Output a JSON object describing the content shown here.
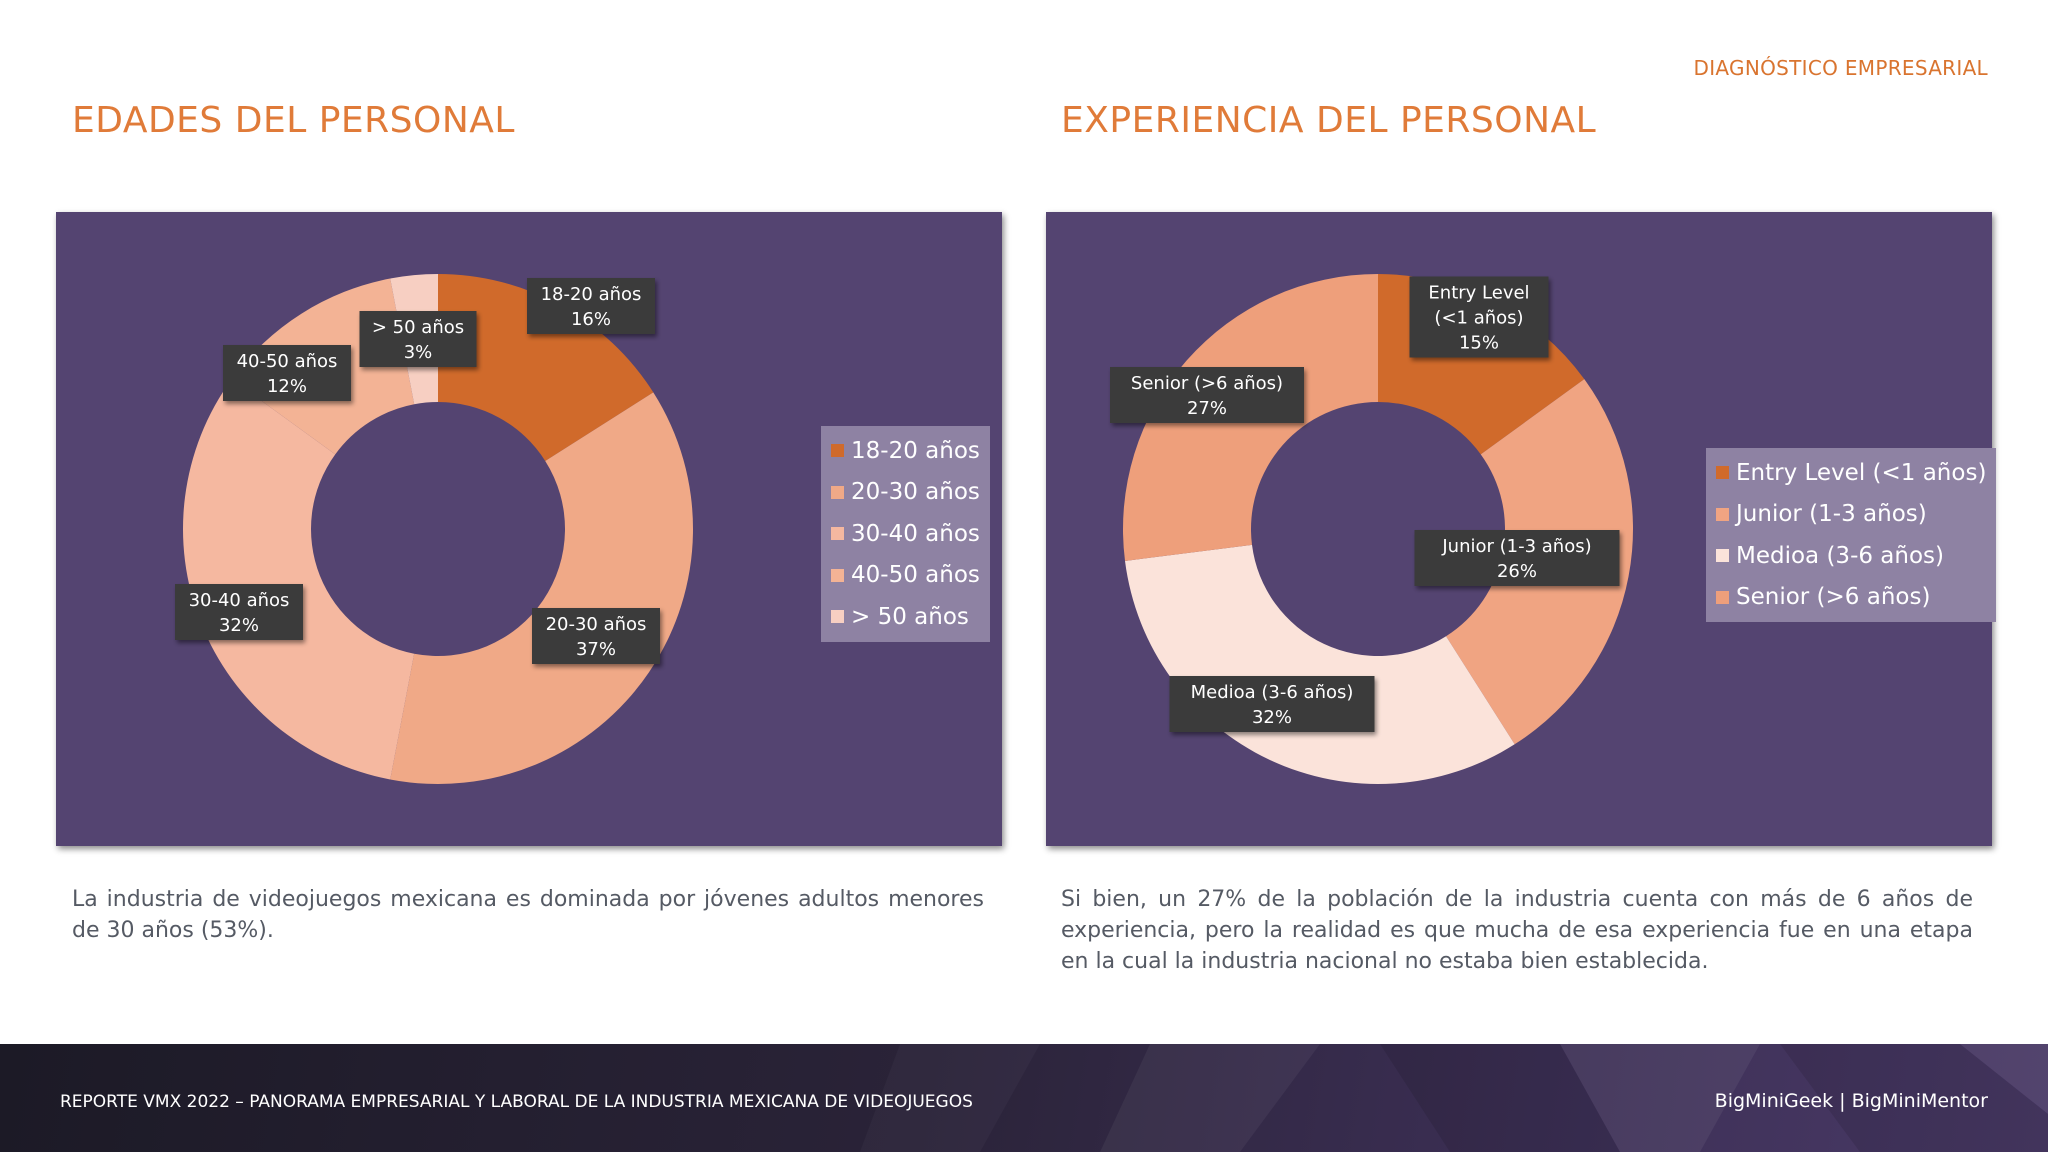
{
  "header": {
    "section_tag": "DIAGNÓSTICO EMPRESARIAL"
  },
  "colors": {
    "accent": "#e07b39",
    "panel": "#544471",
    "legend_bg": "#8e82a3",
    "label_bg": "#3a3a3a"
  },
  "chart_data": [
    {
      "type": "pie",
      "style": "donut",
      "title": "EDADES DEL PERSONAL",
      "categories": [
        "18-20 años",
        "20-30 años",
        "30-40 años",
        "40-50 años",
        "> 50 años"
      ],
      "values": [
        16,
        37,
        32,
        12,
        3
      ],
      "colors": [
        "#d06a2b",
        "#f0a987",
        "#f5b8a0",
        "#f3b395",
        "#f7cfc2"
      ],
      "data_labels": [
        [
          "18-20 años",
          "16%"
        ],
        [
          "20-30 años",
          "37%"
        ],
        [
          "30-40 años",
          "32%"
        ],
        [
          "40-50 años",
          "12%"
        ],
        [
          "> 50 años",
          "3%"
        ]
      ],
      "legend_position": "right",
      "caption": "La industria de videojuegos mexicana es dominada por jóvenes adultos menores de 30 años (53%)."
    },
    {
      "type": "pie",
      "style": "donut",
      "title": "EXPERIENCIA DEL PERSONAL",
      "categories": [
        "Entry Level (<1 años)",
        "Junior (1-3 años)",
        "Medioa (3-6 años)",
        "Senior (>6 años)"
      ],
      "values": [
        15,
        26,
        32,
        27
      ],
      "colors": [
        "#d06a2b",
        "#f0a482",
        "#fbe3da",
        "#ee9f7b"
      ],
      "data_labels": [
        [
          "Entry Level",
          "(<1 años)",
          "15%"
        ],
        [
          "Junior (1-3 años)",
          "26%"
        ],
        [
          "Medioa (3-6 años)",
          "32%"
        ],
        [
          "Senior (>6 años)",
          "27%"
        ]
      ],
      "legend_position": "right",
      "caption": "Si bien, un 27% de la población de la industria cuenta con más de 6 años de experiencia, pero la realidad es que mucha de esa experiencia fue en una etapa en la cual la industria nacional no estaba bien establecida."
    }
  ],
  "footer": {
    "report_title": "REPORTE VMX 2022 – PANORAMA EMPRESARIAL Y LABORAL DE LA INDUSTRIA MEXICANA DE VIDEOJUEGOS",
    "brand": "BigMiniGeek  |  BigMiniMentor"
  }
}
